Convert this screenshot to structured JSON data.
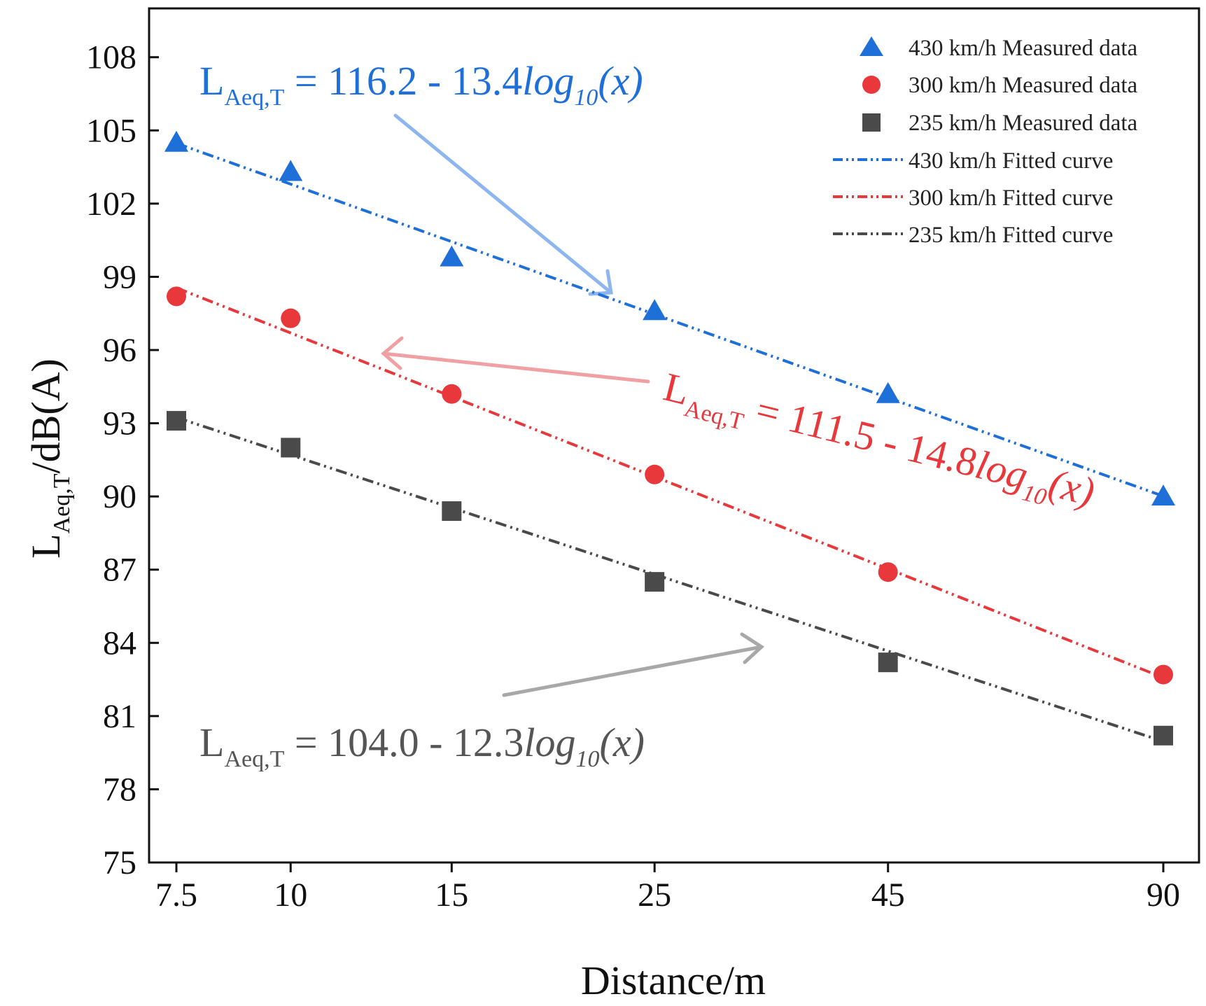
{
  "chart_data": {
    "type": "scatter",
    "title": "",
    "xlabel": "Distance/m",
    "ylabel": {
      "main": "L",
      "sub": "Aeq,T",
      "rest": "/dB(A)"
    },
    "x_scale": "log",
    "x": [
      7.5,
      10,
      15,
      25,
      45,
      90
    ],
    "x_tick_labels": [
      "7.5",
      "10",
      "15",
      "25",
      "45",
      "90"
    ],
    "ylim": [
      75,
      110
    ],
    "y_ticks": [
      75,
      78,
      81,
      84,
      87,
      90,
      93,
      96,
      99,
      102,
      105,
      108
    ],
    "series": [
      {
        "name": "430 km/h Measured data",
        "marker": "triangle",
        "color": "#1f6fd9",
        "values": [
          104.5,
          103.3,
          99.8,
          97.6,
          94.2,
          90.0
        ]
      },
      {
        "name": "300 km/h Measured data",
        "marker": "circle",
        "color": "#e8383b",
        "values": [
          98.2,
          97.3,
          94.2,
          90.9,
          86.9,
          82.7
        ]
      },
      {
        "name": "235 km/h Measured data",
        "marker": "square",
        "color": "#4a4a4a",
        "values": [
          93.1,
          92.0,
          89.4,
          86.5,
          83.2,
          80.2
        ]
      }
    ],
    "fits": [
      {
        "name": "430 km/h Fitted curve",
        "color": "#1f6fd9",
        "a": 116.2,
        "b": 13.4
      },
      {
        "name": "300 km/h Fitted curve",
        "color": "#e8383b",
        "a": 111.5,
        "b": 14.8
      },
      {
        "name": "235 km/h Fitted curve",
        "color": "#4a4a4a",
        "a": 104.0,
        "b": 12.3
      }
    ],
    "annotations": [
      {
        "color": "#1f6fd9",
        "L": "L",
        "sub": "Aeq,T",
        "eq": " = 116.2 - 13.4",
        "log": "log",
        "logsub": "10",
        "tail": "(x)"
      },
      {
        "color": "#e8383b",
        "L": "L",
        "sub": "Aeq,T",
        "eq": " = 111.5 - 14.8",
        "log": "log",
        "logsub": "10",
        "tail": "(x)"
      },
      {
        "color": "#555555",
        "L": "L",
        "sub": "Aeq,T",
        "eq": " = 104.0 - 12.3",
        "log": "log",
        "logsub": "10",
        "tail": "(x)"
      }
    ]
  }
}
